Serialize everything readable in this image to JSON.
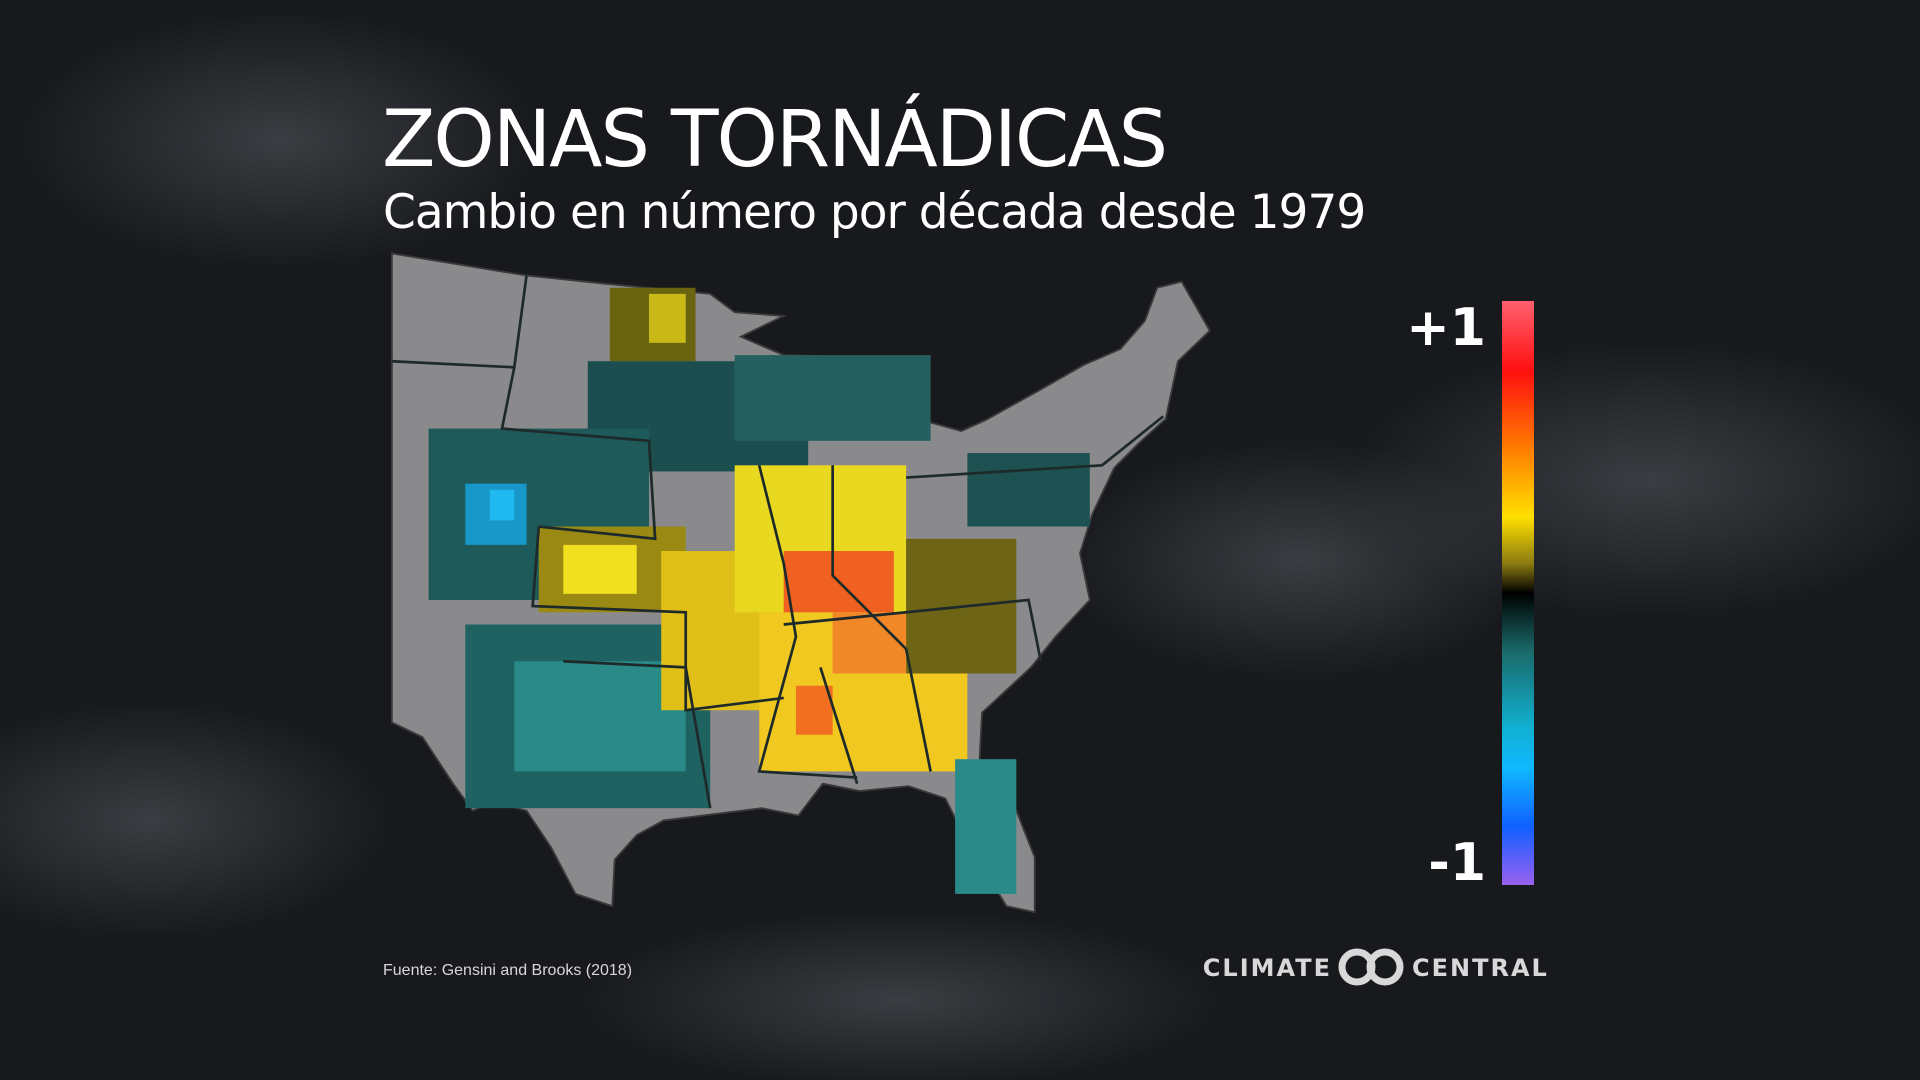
{
  "header": {
    "title": "ZONAS TORNÁDICAS",
    "subtitle": "Cambio en número por década desde 1979"
  },
  "legend": {
    "max_label": "+1",
    "min_label": "-1"
  },
  "footer": {
    "source": "Fuente: Gensini and Brooks (2018)",
    "logo_left": "CLIMATE",
    "logo_right": "CENTRAL"
  }
}
